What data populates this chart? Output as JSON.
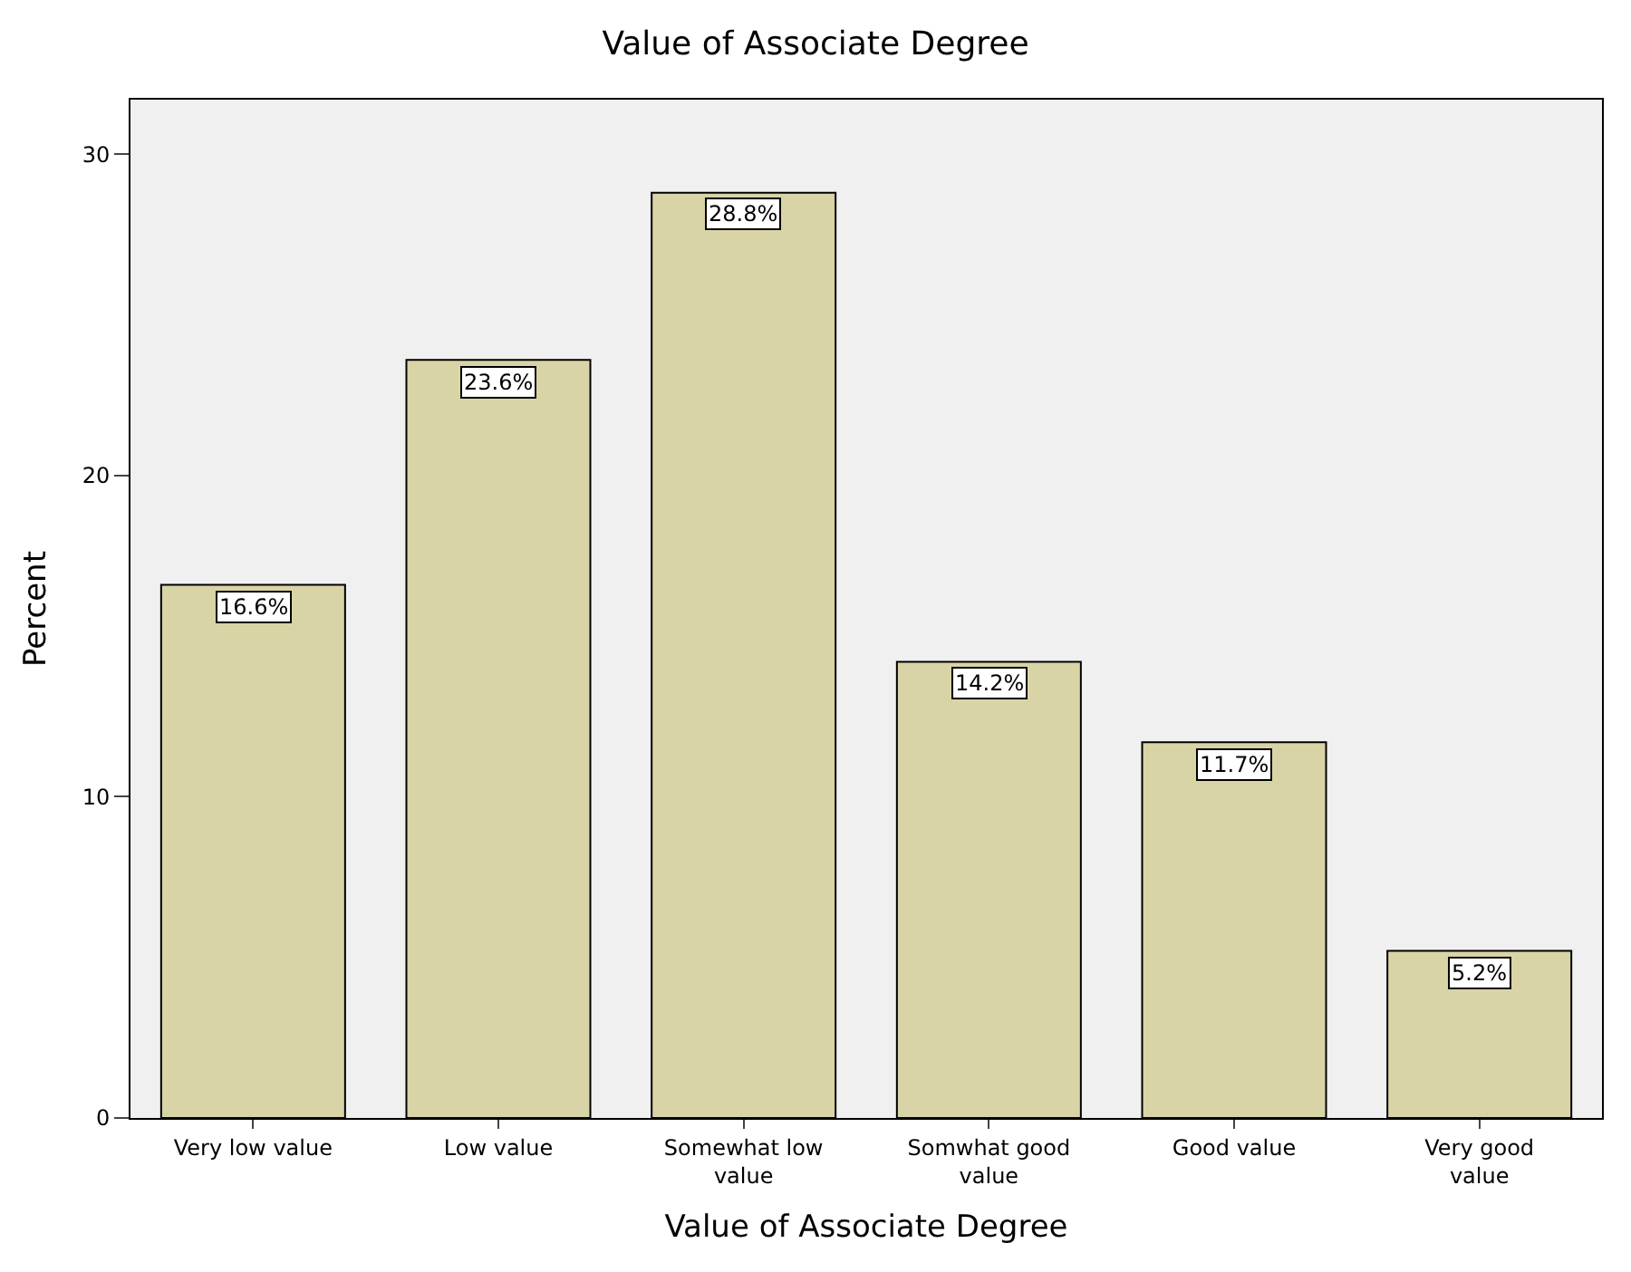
{
  "chart_data": {
    "type": "bar",
    "title": "Value of Associate Degree",
    "xlabel": "Value of Associate Degree",
    "ylabel": "Percent",
    "categories": [
      "Very low value",
      "Low value",
      "Somewhat low value",
      "Somwhat good value",
      "Good value",
      "Very good value"
    ],
    "values": [
      16.6,
      23.6,
      28.8,
      14.2,
      11.7,
      5.2
    ],
    "value_labels": [
      "16.6%",
      "23.6%",
      "28.8%",
      "14.2%",
      "11.7%",
      "5.2%"
    ],
    "color": "#d9d4a6",
    "ylim": [
      0,
      31.7
    ],
    "yticks": [
      0,
      10,
      20,
      30
    ],
    "grid": false,
    "legend": false
  }
}
